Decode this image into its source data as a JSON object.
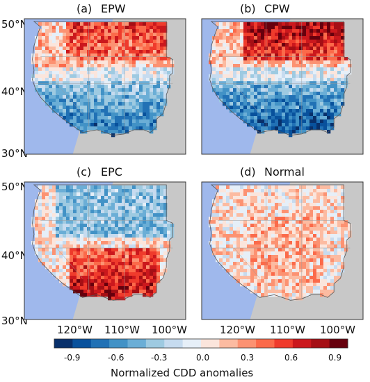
{
  "panels": [
    {
      "letter": "(a)",
      "name": "EPW",
      "hot": "north",
      "hot_strength": 0.7,
      "cold_strength": 0.85
    },
    {
      "letter": "(b)",
      "name": "CPW",
      "hot": "north",
      "hot_strength": 1.0,
      "cold_strength": 1.0
    },
    {
      "letter": "(c)",
      "name": "EPC",
      "hot": "south",
      "hot_strength": 0.95,
      "cold_strength": 0.6
    },
    {
      "letter": "(d)",
      "name": "Normal",
      "hot": "none",
      "hot_strength": 0.35,
      "cold_strength": 0.2
    }
  ],
  "lat_ticks": [
    "50°N",
    "40°N",
    "30°N"
  ],
  "lon_ticks": [
    "120°W",
    "110°W",
    "100°W"
  ],
  "colorbar": {
    "label": "Normalized CDD anomalies",
    "ticks": [
      "-0.9",
      "-0.6",
      "-0.3",
      "0.0",
      "0.3",
      "0.6",
      "0.9"
    ],
    "colors": [
      "#08306b",
      "#08519c",
      "#2171b5",
      "#4292c6",
      "#6baed6",
      "#9ecae1",
      "#c6dbef",
      "#e6eff8",
      "#fbe5dc",
      "#fcbba1",
      "#fc9272",
      "#fb6a4a",
      "#ef3b2c",
      "#cb181d",
      "#a50f15",
      "#67000d"
    ]
  },
  "colors": {
    "ocean": "#9fb8ec",
    "land_outside": "#c8c8c8",
    "frame": "#333333",
    "neutral": "#f6f4f4"
  }
}
